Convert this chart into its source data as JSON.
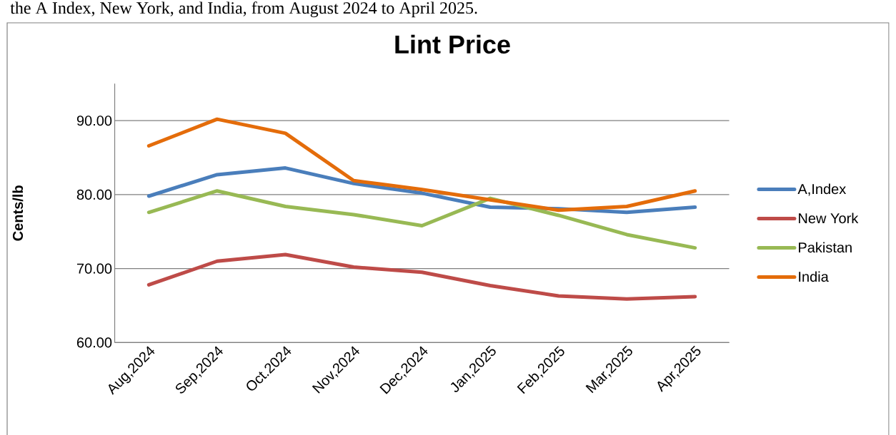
{
  "chart_data": {
    "type": "line",
    "title": "Lint Price",
    "ylabel": "Cents/lb",
    "annotations": [
      "the A Index, New York, and India, from August 2024 to April 2025."
    ],
    "categories": [
      "Aug,2024",
      "Sep,2024",
      "Oct.2024",
      "Nov,2024",
      "Dec,2024",
      "Jan,2025",
      "Feb,2025",
      "Mar,2025",
      "Apr,2025"
    ],
    "series": [
      {
        "name": "A,Index",
        "color": "#4a7ebb",
        "values": [
          79.8,
          82.7,
          83.6,
          81.5,
          80.2,
          78.3,
          78.1,
          77.6,
          78.3
        ]
      },
      {
        "name": "New York",
        "color": "#be4b48",
        "values": [
          67.8,
          71.0,
          71.9,
          70.2,
          69.5,
          67.7,
          66.3,
          65.9,
          66.2
        ]
      },
      {
        "name": "Pakistan",
        "color": "#98b954",
        "values": [
          77.6,
          80.5,
          78.4,
          77.3,
          75.8,
          79.5,
          77.2,
          74.6,
          72.8
        ]
      },
      {
        "name": "India",
        "color": "#e46c0a",
        "values": [
          86.6,
          90.2,
          88.3,
          81.9,
          80.7,
          79.3,
          77.9,
          78.4,
          80.5
        ]
      }
    ],
    "ylim": [
      60,
      95
    ],
    "yticks": [
      {
        "value": 60,
        "label": "60.00"
      },
      {
        "value": 70,
        "label": "70.00"
      },
      {
        "value": 80,
        "label": "80.00"
      },
      {
        "value": 90,
        "label": "90.00"
      }
    ],
    "grid": "y",
    "legend": "right"
  }
}
